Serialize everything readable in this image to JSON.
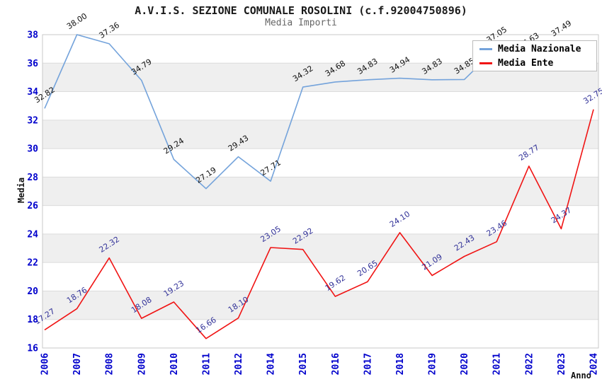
{
  "title": "A.V.I.S. SEZIONE COMUNALE ROSOLINI (c.f.92004750896)",
  "subtitle": "Media Importi",
  "chart_data": {
    "type": "line",
    "x": [
      "2006",
      "2007",
      "2008",
      "2009",
      "2010",
      "2011",
      "2012",
      "2014",
      "2015",
      "2016",
      "2017",
      "2018",
      "2019",
      "2020",
      "2021",
      "2022",
      "2023",
      "2024"
    ],
    "series": [
      {
        "name": "Media Nazionale",
        "color": "#74A3DB",
        "label_color": "#111111",
        "values": [
          32.82,
          38.0,
          37.36,
          34.79,
          29.24,
          27.19,
          29.43,
          27.71,
          34.32,
          34.68,
          34.83,
          34.94,
          34.83,
          34.85,
          37.05,
          36.63,
          37.49,
          null
        ]
      },
      {
        "name": "Media Ente",
        "color": "#F01414",
        "label_color": "#333399",
        "values": [
          17.27,
          18.76,
          22.32,
          18.08,
          19.23,
          16.66,
          18.1,
          23.05,
          22.92,
          19.62,
          20.65,
          24.1,
          21.09,
          22.43,
          23.46,
          28.77,
          24.37,
          32.75
        ]
      }
    ],
    "xlabel": "Anno",
    "ylabel": "Media",
    "ylim": [
      16,
      38
    ],
    "ytick_step": 2,
    "grid": "horizontal",
    "bands": "alternating-gray",
    "legend_position": "top-right",
    "tick_label_color": "#0000CC",
    "band_color": "#EFEFEF",
    "gridline_color": "#DCDCDC",
    "border_color": "#C8C8C8"
  }
}
